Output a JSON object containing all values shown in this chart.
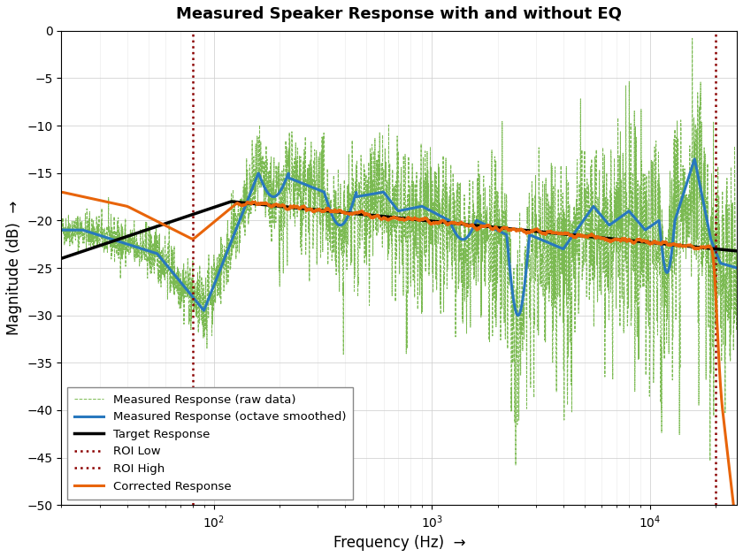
{
  "title": "Measured Speaker Response with and without EQ",
  "xlabel": "Frequency (Hz)  →",
  "ylabel": "Magnitude (dB)  →",
  "xlim": [
    20,
    25000
  ],
  "ylim": [
    -50,
    0
  ],
  "yticks": [
    0,
    -5,
    -10,
    -15,
    -20,
    -25,
    -30,
    -35,
    -40,
    -45,
    -50
  ],
  "roi_low": 80,
  "roi_high": 20000,
  "colors": {
    "raw": "#6db33f",
    "smoothed": "#2878be",
    "target": "#000000",
    "roi": "#8b0000",
    "corrected": "#e8640a"
  },
  "grid_color": "#d0d0d0",
  "grid_color_minor": "#e0e0e0"
}
